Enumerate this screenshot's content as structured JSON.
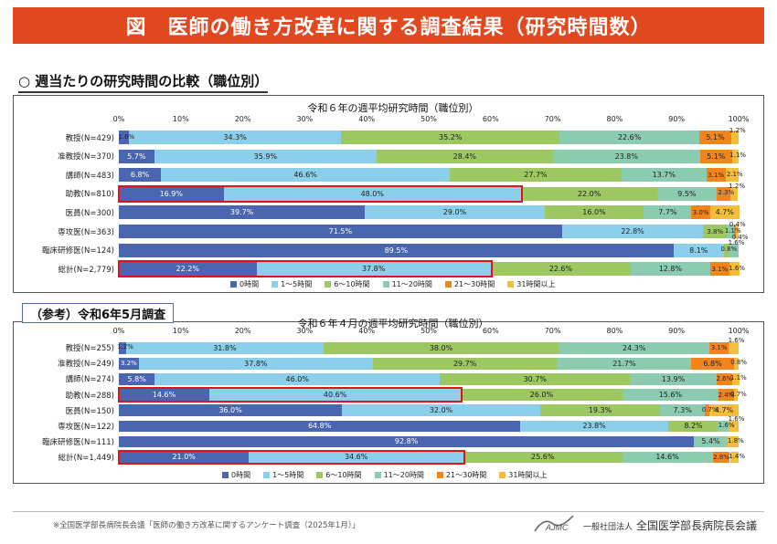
{
  "title": "図　医師の働き方改革に関する調査結果（研究時間数）",
  "subheading": "○ 週当たりの研究時間の比較（職位別）",
  "reference_label": "（参考）令和6年5月調査",
  "colors": [
    "#4a66b0",
    "#8ccfea",
    "#9dc760",
    "#8bcbb0",
    "#f2841c",
    "#f4be3b"
  ],
  "legend": [
    "0時間",
    "1～5時間",
    "6～10時間",
    "11～20時間",
    "21～30時間",
    "31時間以上"
  ],
  "chart_data": [
    {
      "type": "bar",
      "orientation": "horizontal",
      "stacked": true,
      "title": "令和６年の週平均研究時間（職位別）",
      "xlim": [
        0,
        100
      ],
      "x_ticks": [
        "0%",
        "10%",
        "20%",
        "30%",
        "40%",
        "50%",
        "60%",
        "70%",
        "80%",
        "90%",
        "100%"
      ],
      "categories": [
        "教授(N=429)",
        "准教授(N=370)",
        "講師(N=483)",
        "助教(N=810)",
        "医員(N=300)",
        "専攻医(N=363)",
        "臨床研修医(N=124)",
        "総計(N=2,779)"
      ],
      "series": [
        {
          "name": "0時間",
          "values": [
            1.6,
            5.7,
            6.8,
            16.9,
            39.7,
            71.5,
            89.5,
            22.2
          ]
        },
        {
          "name": "1～5時間",
          "values": [
            34.3,
            35.9,
            46.6,
            48.0,
            29.0,
            22.8,
            8.1,
            37.8
          ]
        },
        {
          "name": "6～10時間",
          "values": [
            35.2,
            28.4,
            27.7,
            22.0,
            16.0,
            3.8,
            0.8,
            22.6
          ]
        },
        {
          "name": "11～20時間",
          "values": [
            22.6,
            23.8,
            13.7,
            9.5,
            7.7,
            1.1,
            1.6,
            12.8
          ]
        },
        {
          "name": "21～30時間",
          "values": [
            5.1,
            5.1,
            3.1,
            2.3,
            3.0,
            0.4,
            0.0,
            3.1
          ]
        },
        {
          "name": "31時間以上",
          "values": [
            1.2,
            1.1,
            2.1,
            1.2,
            4.7,
            0.4,
            0.0,
            1.6
          ]
        }
      ],
      "highlighted_rows": [
        3,
        7
      ]
    },
    {
      "type": "bar",
      "orientation": "horizontal",
      "stacked": true,
      "title": "令和６年４月の週平均研究時間（職位別）",
      "xlim": [
        0,
        100
      ],
      "x_ticks": [
        "0%",
        "10%",
        "20%",
        "30%",
        "40%",
        "50%",
        "60%",
        "70%",
        "80%",
        "90%",
        "100%"
      ],
      "categories": [
        "教授(N=255)",
        "准教授(N=249)",
        "講師(N=274)",
        "助教(N=288)",
        "医員(N=150)",
        "専攻医(N=122)",
        "臨床研修医(N=111)",
        "総計(N=1,449)"
      ],
      "series": [
        {
          "name": "0時間",
          "values": [
            1.2,
            3.2,
            5.8,
            14.6,
            36.0,
            64.8,
            92.8,
            21.0
          ]
        },
        {
          "name": "1～5時間",
          "values": [
            31.8,
            37.8,
            46.0,
            40.6,
            32.0,
            23.8,
            0.0,
            34.6
          ]
        },
        {
          "name": "6～10時間",
          "values": [
            38.0,
            29.7,
            30.7,
            26.0,
            19.3,
            8.2,
            0.0,
            25.6
          ]
        },
        {
          "name": "11～20時間",
          "values": [
            24.3,
            21.7,
            13.9,
            15.6,
            7.3,
            1.6,
            5.4,
            14.6
          ]
        },
        {
          "name": "21～30時間",
          "values": [
            3.1,
            6.8,
            2.6,
            2.4,
            0.7,
            0.0,
            0.0,
            2.8
          ]
        },
        {
          "name": "31時間以上",
          "values": [
            1.6,
            0.8,
            1.1,
            0.7,
            4.7,
            1.6,
            1.8,
            1.4
          ]
        }
      ],
      "highlighted_rows": [
        3,
        7
      ]
    }
  ],
  "footer_note": "※全国医学部長病院長会議「医師の働き方改革に関するアンケート調査（2025年1月）」",
  "logo_text": "AJMC",
  "organization_prefix": "一般社団法人",
  "organization": "全国医学部長病院長会議"
}
